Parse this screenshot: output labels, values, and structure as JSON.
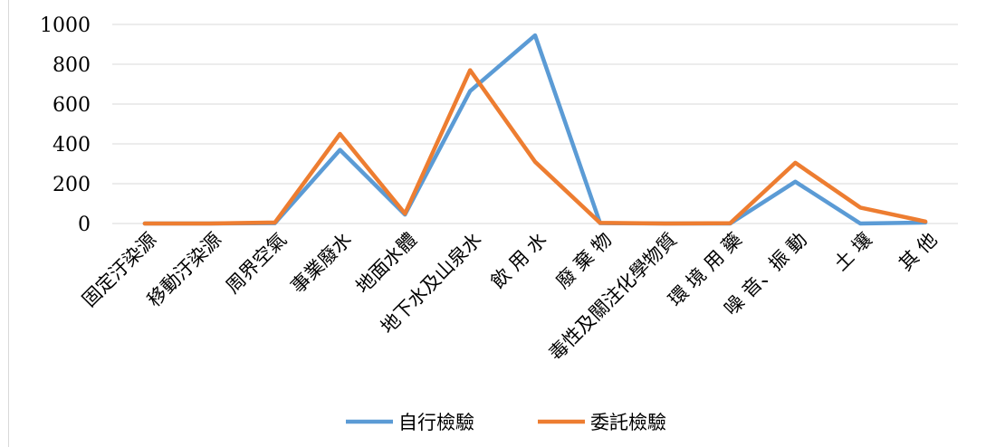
{
  "chart_data": {
    "type": "line",
    "categories": [
      "固定汙染源",
      "移動汙染源",
      "周界空氣",
      "事業廢水",
      "地面水體",
      "地下水及山泉水",
      "飲 用 水",
      "廢 棄 物",
      "毒性及關注化學物質",
      "環 境 用 藥",
      "噪 音、振 動",
      "土 壤",
      "其 他"
    ],
    "series": [
      {
        "name": "自行檢驗",
        "color": "#5b9bd5",
        "values": [
          0,
          0,
          2,
          370,
          45,
          665,
          945,
          2,
          0,
          0,
          210,
          0,
          5
        ]
      },
      {
        "name": "委託檢驗",
        "color": "#ed7d31",
        "values": [
          0,
          0,
          5,
          450,
          50,
          770,
          310,
          3,
          0,
          2,
          305,
          80,
          10
        ]
      }
    ],
    "ylim": [
      0,
      1000
    ],
    "yticks": [
      0,
      200,
      400,
      600,
      800,
      1000
    ],
    "grid": true,
    "legend_position": "bottom"
  }
}
